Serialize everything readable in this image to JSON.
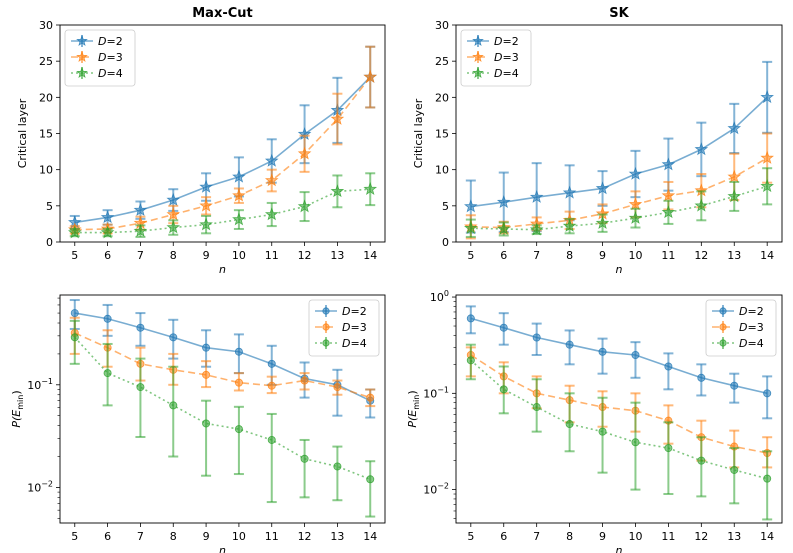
{
  "chart_data": [
    {
      "id": "maxcut-critical",
      "type": "line",
      "scale": "linear",
      "title": "Max-Cut",
      "xlabel": "n",
      "ylabel": "Critical layer",
      "x": [
        5,
        6,
        7,
        8,
        9,
        10,
        11,
        12,
        13,
        14
      ],
      "ylim": [
        0,
        30
      ],
      "yticks": [
        0,
        5,
        10,
        15,
        20,
        25,
        30
      ],
      "ytick_labels": [
        "0",
        "5",
        "10",
        "15",
        "20",
        "25",
        "30"
      ],
      "legend_position": "top-left",
      "series": [
        {
          "name": "D=2",
          "label_base": "D",
          "label_value": "=2",
          "color": "#1f77b4",
          "marker": "star",
          "dash": "",
          "values": [
            2.7,
            3.4,
            4.4,
            5.8,
            7.6,
            9.0,
            11.2,
            14.9,
            18.2,
            22.8
          ],
          "err": [
            0.9,
            1.0,
            1.2,
            1.5,
            1.9,
            2.7,
            3.0,
            4.0,
            4.5,
            4.2
          ]
        },
        {
          "name": "D=3",
          "label_base": "D",
          "label_value": "=3",
          "color": "#ff7f0e",
          "marker": "star",
          "dash": "7,4",
          "values": [
            1.7,
            1.8,
            2.6,
            3.8,
            5.0,
            6.4,
            8.5,
            12.2,
            17.0,
            22.8
          ],
          "err": [
            0.5,
            0.6,
            0.9,
            1.2,
            1.2,
            1.0,
            1.5,
            2.5,
            3.5,
            4.2
          ]
        },
        {
          "name": "D=4",
          "label_base": "D",
          "label_value": "=4",
          "color": "#2ca02c",
          "marker": "star",
          "dash": "2,3",
          "values": [
            1.3,
            1.3,
            1.5,
            2.0,
            2.4,
            3.1,
            3.8,
            4.9,
            7.0,
            7.3
          ],
          "err": [
            0.5,
            0.5,
            0.8,
            1.0,
            1.2,
            1.3,
            1.6,
            2.0,
            2.2,
            2.2
          ]
        }
      ]
    },
    {
      "id": "sk-critical",
      "type": "line",
      "scale": "linear",
      "title": "SK",
      "xlabel": "n",
      "ylabel": "Critical layer",
      "x": [
        5,
        6,
        7,
        8,
        9,
        10,
        11,
        12,
        13,
        14
      ],
      "ylim": [
        0,
        30
      ],
      "yticks": [
        0,
        5,
        10,
        15,
        20,
        25,
        30
      ],
      "ytick_labels": [
        "0",
        "5",
        "10",
        "15",
        "20",
        "25",
        "30"
      ],
      "legend_position": "top-left",
      "series": [
        {
          "name": "D=2",
          "label_base": "D",
          "label_value": "=2",
          "color": "#1f77b4",
          "marker": "star",
          "dash": "",
          "values": [
            4.9,
            5.5,
            6.2,
            6.8,
            7.4,
            9.4,
            10.7,
            12.8,
            15.7,
            20.0
          ],
          "err": [
            3.6,
            4.1,
            4.7,
            3.8,
            2.4,
            3.2,
            3.6,
            3.7,
            3.4,
            4.9
          ]
        },
        {
          "name": "D=3",
          "label_base": "D",
          "label_value": "=3",
          "color": "#ff7f0e",
          "marker": "star",
          "dash": "7,4",
          "values": [
            2.1,
            2.0,
            2.5,
            3.0,
            3.9,
            5.2,
            6.4,
            7.1,
            9.0,
            11.6
          ],
          "err": [
            1.6,
            0.8,
            0.9,
            1.2,
            1.3,
            1.8,
            1.9,
            2.3,
            3.2,
            3.4
          ]
        },
        {
          "name": "D=4",
          "label_base": "D",
          "label_value": "=4",
          "color": "#2ca02c",
          "marker": "star",
          "dash": "2,3",
          "values": [
            1.9,
            1.8,
            1.7,
            2.2,
            2.6,
            3.3,
            4.1,
            5.0,
            6.3,
            7.7
          ],
          "err": [
            1.2,
            0.9,
            0.6,
            1.0,
            1.2,
            1.3,
            1.6,
            2.0,
            2.0,
            2.5
          ]
        }
      ]
    },
    {
      "id": "maxcut-prob",
      "type": "line",
      "scale": "log",
      "title": "",
      "xlabel": "n",
      "ylabel_base": "P(E",
      "ylabel_sub": "min",
      "ylabel_end": ")",
      "x": [
        5,
        6,
        7,
        8,
        9,
        10,
        11,
        12,
        13,
        14
      ],
      "ylim": [
        0.0045,
        0.75
      ],
      "yticks": [
        0.01,
        0.1
      ],
      "ytick_labels": [
        {
          "base": "10",
          "exp": "−2"
        },
        {
          "base": "10",
          "exp": "−1"
        }
      ],
      "legend_position": "top-right",
      "series": [
        {
          "name": "D=2",
          "label_base": "D",
          "label_value": "=2",
          "color": "#1f77b4",
          "marker": "circle",
          "dash": "",
          "values": [
            0.5,
            0.44,
            0.36,
            0.29,
            0.23,
            0.21,
            0.16,
            0.115,
            0.1,
            0.07
          ],
          "low": [
            0.35,
            0.3,
            0.24,
            0.18,
            0.15,
            0.13,
            0.1,
            0.075,
            0.05,
            0.048
          ],
          "high": [
            0.67,
            0.6,
            0.5,
            0.43,
            0.34,
            0.31,
            0.24,
            0.165,
            0.14,
            0.09
          ]
        },
        {
          "name": "D=3",
          "label_base": "D",
          "label_value": "=3",
          "color": "#ff7f0e",
          "marker": "circle",
          "dash": "7,4",
          "values": [
            0.32,
            0.23,
            0.16,
            0.14,
            0.125,
            0.105,
            0.098,
            0.11,
            0.095,
            0.075
          ],
          "low": [
            0.2,
            0.15,
            0.11,
            0.1,
            0.095,
            0.088,
            0.083,
            0.09,
            0.08,
            0.062
          ],
          "high": [
            0.45,
            0.34,
            0.23,
            0.2,
            0.17,
            0.13,
            0.12,
            0.13,
            0.11,
            0.09
          ]
        },
        {
          "name": "D=4",
          "label_base": "D",
          "label_value": "=4",
          "color": "#2ca02c",
          "marker": "circle",
          "dash": "2,3",
          "values": [
            0.29,
            0.13,
            0.095,
            0.063,
            0.042,
            0.037,
            0.029,
            0.019,
            0.016,
            0.012
          ],
          "low": [
            0.16,
            0.063,
            0.031,
            0.02,
            0.013,
            0.0135,
            0.0072,
            0.008,
            0.0075,
            0.0052
          ],
          "high": [
            0.42,
            0.25,
            0.18,
            0.15,
            0.07,
            0.061,
            0.052,
            0.029,
            0.025,
            0.018
          ]
        }
      ]
    },
    {
      "id": "sk-prob",
      "type": "line",
      "scale": "log",
      "title": "",
      "xlabel": "n",
      "ylabel_base": "P(E",
      "ylabel_sub": "min",
      "ylabel_end": ")",
      "x": [
        5,
        6,
        7,
        8,
        9,
        10,
        11,
        12,
        13,
        14
      ],
      "ylim": [
        0.0045,
        1.05
      ],
      "yticks": [
        0.01,
        0.1,
        1
      ],
      "ytick_labels": [
        {
          "base": "10",
          "exp": "−2"
        },
        {
          "base": "10",
          "exp": "−1"
        },
        {
          "base": "10",
          "exp": "0"
        }
      ],
      "legend_position": "top-right",
      "series": [
        {
          "name": "D=2",
          "label_base": "D",
          "label_value": "=2",
          "color": "#1f77b4",
          "marker": "circle",
          "dash": "",
          "values": [
            0.6,
            0.48,
            0.38,
            0.32,
            0.27,
            0.25,
            0.19,
            0.145,
            0.12,
            0.1
          ],
          "low": [
            0.42,
            0.32,
            0.25,
            0.2,
            0.16,
            0.145,
            0.11,
            0.095,
            0.08,
            0.055
          ],
          "high": [
            0.8,
            0.68,
            0.53,
            0.45,
            0.37,
            0.34,
            0.26,
            0.2,
            0.16,
            0.15
          ]
        },
        {
          "name": "D=3",
          "label_base": "D",
          "label_value": "=3",
          "color": "#ff7f0e",
          "marker": "circle",
          "dash": "7,4",
          "values": [
            0.25,
            0.15,
            0.1,
            0.085,
            0.072,
            0.066,
            0.052,
            0.035,
            0.028,
            0.024
          ],
          "low": [
            0.15,
            0.1,
            0.07,
            0.05,
            0.045,
            0.04,
            0.03,
            0.02,
            0.017,
            0.017
          ],
          "high": [
            0.3,
            0.21,
            0.15,
            0.12,
            0.105,
            0.1,
            0.075,
            0.052,
            0.041,
            0.035
          ]
        },
        {
          "name": "D=4",
          "label_base": "D",
          "label_value": "=4",
          "color": "#2ca02c",
          "marker": "circle",
          "dash": "2,3",
          "values": [
            0.22,
            0.11,
            0.072,
            0.048,
            0.04,
            0.031,
            0.027,
            0.02,
            0.016,
            0.013
          ],
          "low": [
            0.14,
            0.062,
            0.04,
            0.025,
            0.015,
            0.01,
            0.009,
            0.0085,
            0.0072,
            0.0049
          ],
          "high": [
            0.32,
            0.19,
            0.14,
            0.1,
            0.09,
            0.08,
            0.05,
            0.035,
            0.027,
            0.025
          ]
        }
      ]
    }
  ]
}
